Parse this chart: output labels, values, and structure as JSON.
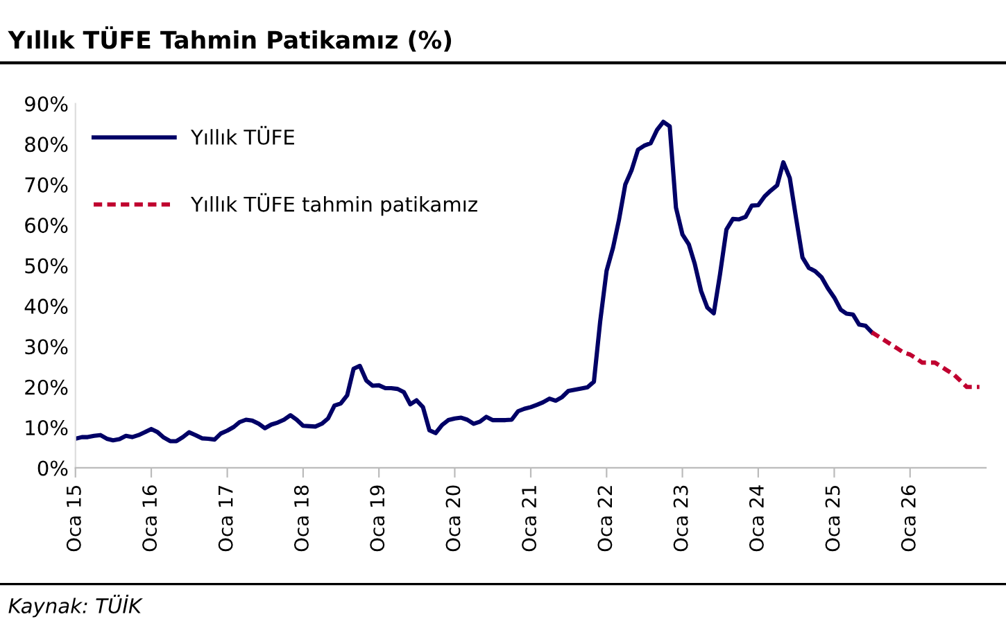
{
  "chart_data": {
    "type": "line",
    "title": "Yıllık TÜFE Tahmin Patikamız (%)",
    "annotations": [
      "Kaynak: TÜİK"
    ],
    "xlim": [
      "2015-01",
      "2027-01"
    ],
    "xticks": [
      {
        "value": "2015-01",
        "label": "Oca 15"
      },
      {
        "value": "2016-01",
        "label": "Oca 16"
      },
      {
        "value": "2017-01",
        "label": "Oca 17"
      },
      {
        "value": "2018-01",
        "label": "Oca 18"
      },
      {
        "value": "2019-01",
        "label": "Oca 19"
      },
      {
        "value": "2020-01",
        "label": "Oca 20"
      },
      {
        "value": "2021-01",
        "label": "Oca 21"
      },
      {
        "value": "2022-01",
        "label": "Oca 22"
      },
      {
        "value": "2023-01",
        "label": "Oca 23"
      },
      {
        "value": "2024-01",
        "label": "Oca 24"
      },
      {
        "value": "2025-01",
        "label": "Oca 25"
      },
      {
        "value": "2026-01",
        "label": "Oca 26"
      }
    ],
    "ylim": [
      0,
      90
    ],
    "yticks": [
      {
        "value": 0,
        "label": "0%"
      },
      {
        "value": 10,
        "label": "10%"
      },
      {
        "value": 20,
        "label": "20%"
      },
      {
        "value": 30,
        "label": "30%"
      },
      {
        "value": 40,
        "label": "40%"
      },
      {
        "value": 50,
        "label": "50%"
      },
      {
        "value": 60,
        "label": "60%"
      },
      {
        "value": 70,
        "label": "70%"
      },
      {
        "value": 80,
        "label": "80%"
      },
      {
        "value": 90,
        "label": "90%"
      }
    ],
    "grid": false,
    "legend": "top left",
    "series": [
      {
        "name": "Yıllık TÜFE",
        "color": "#000066",
        "line_style": "solid",
        "x": [
          "2015-01",
          "2015-02",
          "2015-03",
          "2015-04",
          "2015-05",
          "2015-06",
          "2015-07",
          "2015-08",
          "2015-09",
          "2015-10",
          "2015-11",
          "2015-12",
          "2016-01",
          "2016-02",
          "2016-03",
          "2016-04",
          "2016-05",
          "2016-06",
          "2016-07",
          "2016-08",
          "2016-09",
          "2016-10",
          "2016-11",
          "2016-12",
          "2017-01",
          "2017-02",
          "2017-03",
          "2017-04",
          "2017-05",
          "2017-06",
          "2017-07",
          "2017-08",
          "2017-09",
          "2017-10",
          "2017-11",
          "2017-12",
          "2018-01",
          "2018-02",
          "2018-03",
          "2018-04",
          "2018-05",
          "2018-06",
          "2018-07",
          "2018-08",
          "2018-09",
          "2018-10",
          "2018-11",
          "2018-12",
          "2019-01",
          "2019-02",
          "2019-03",
          "2019-04",
          "2019-05",
          "2019-06",
          "2019-07",
          "2019-08",
          "2019-09",
          "2019-10",
          "2019-11",
          "2019-12",
          "2020-01",
          "2020-02",
          "2020-03",
          "2020-04",
          "2020-05",
          "2020-06",
          "2020-07",
          "2020-08",
          "2020-09",
          "2020-10",
          "2020-11",
          "2020-12",
          "2021-01",
          "2021-02",
          "2021-03",
          "2021-04",
          "2021-05",
          "2021-06",
          "2021-07",
          "2021-08",
          "2021-09",
          "2021-10",
          "2021-11",
          "2021-12",
          "2022-01",
          "2022-02",
          "2022-03",
          "2022-04",
          "2022-05",
          "2022-06",
          "2022-07",
          "2022-08",
          "2022-09",
          "2022-10",
          "2022-11",
          "2022-12",
          "2023-01",
          "2023-02",
          "2023-03",
          "2023-04",
          "2023-05",
          "2023-06",
          "2023-07",
          "2023-08",
          "2023-09",
          "2023-10",
          "2023-11",
          "2023-12",
          "2024-01",
          "2024-02",
          "2024-03",
          "2024-04",
          "2024-05",
          "2024-06",
          "2024-07",
          "2024-08",
          "2024-09",
          "2024-10",
          "2024-11",
          "2024-12",
          "2025-01",
          "2025-02",
          "2025-03",
          "2025-04",
          "2025-05",
          "2025-06",
          "2025-07"
        ],
        "values": [
          7.2,
          7.6,
          7.6,
          7.9,
          8.1,
          7.2,
          6.8,
          7.1,
          7.9,
          7.6,
          8.1,
          8.8,
          9.6,
          8.8,
          7.5,
          6.6,
          6.6,
          7.6,
          8.8,
          8.1,
          7.3,
          7.2,
          7.0,
          8.5,
          9.2,
          10.1,
          11.3,
          11.9,
          11.7,
          10.9,
          9.8,
          10.7,
          11.2,
          11.9,
          13.0,
          11.9,
          10.4,
          10.3,
          10.2,
          10.9,
          12.2,
          15.4,
          15.9,
          17.9,
          24.5,
          25.2,
          21.6,
          20.3,
          20.4,
          19.7,
          19.7,
          19.5,
          18.7,
          15.7,
          16.7,
          15.0,
          9.3,
          8.6,
          10.6,
          11.8,
          12.2,
          12.4,
          11.9,
          10.9,
          11.4,
          12.6,
          11.8,
          11.8,
          11.8,
          11.9,
          14.0,
          14.6,
          15.0,
          15.6,
          16.2,
          17.1,
          16.6,
          17.5,
          19.0,
          19.3,
          19.6,
          19.9,
          21.3,
          36.1,
          48.7,
          54.4,
          61.1,
          70.0,
          73.5,
          78.6,
          79.6,
          80.2,
          83.5,
          85.5,
          84.4,
          64.3,
          57.7,
          55.2,
          50.5,
          43.7,
          39.6,
          38.2,
          47.8,
          58.9,
          61.5,
          61.4,
          62.0,
          64.8,
          64.9,
          67.1,
          68.5,
          69.8,
          75.5,
          71.6,
          61.8,
          52.0,
          49.4,
          48.6,
          47.1,
          44.4,
          42.1,
          39.1,
          38.1,
          37.9,
          35.4,
          35.1,
          33.5
        ]
      },
      {
        "name": "Yıllık TÜFE tahmin patikamız",
        "color": "#c00030",
        "line_style": "dashed",
        "x": [
          "2025-07",
          "2025-08",
          "2025-09",
          "2025-10",
          "2025-11",
          "2025-12",
          "2026-01",
          "2026-02",
          "2026-03",
          "2026-04",
          "2026-05",
          "2026-06",
          "2026-07",
          "2026-08",
          "2026-09",
          "2026-10",
          "2026-11",
          "2026-12"
        ],
        "values": [
          33.5,
          32.5,
          31.5,
          30.5,
          29.5,
          28.5,
          28,
          27,
          26,
          26,
          26,
          25,
          24,
          23,
          21.5,
          20,
          20,
          20
        ]
      }
    ]
  }
}
